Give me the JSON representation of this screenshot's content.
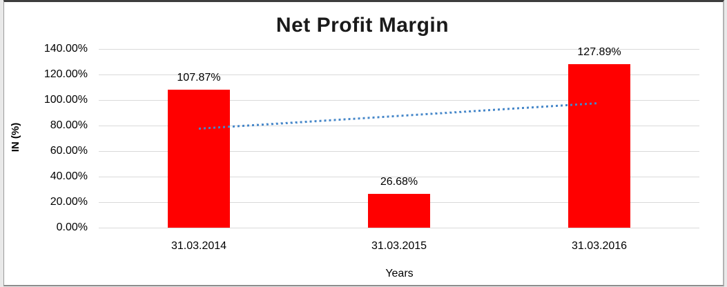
{
  "chart_data": {
    "type": "bar",
    "title": "Net Profit Margin",
    "categories": [
      "31.03.2014",
      "31.03.2015",
      "31.03.2016"
    ],
    "values": [
      107.87,
      26.68,
      127.89
    ],
    "data_labels": [
      "107.87%",
      "26.68%",
      "127.89%"
    ],
    "xlabel": "Years",
    "ylabel": "IN (%)",
    "ylim": [
      0,
      140
    ],
    "ytick_step": 20,
    "ytick_labels": [
      "0.00%",
      "20.00%",
      "40.00%",
      "60.00%",
      "80.00%",
      "100.00%",
      "120.00%",
      "140.00%"
    ],
    "grid": true,
    "legend": false,
    "bar_color": "#ff0000",
    "gridline_color": "#d9d9d9",
    "trendline": {
      "type": "linear",
      "style": "dotted",
      "color": "#4687c9"
    }
  }
}
